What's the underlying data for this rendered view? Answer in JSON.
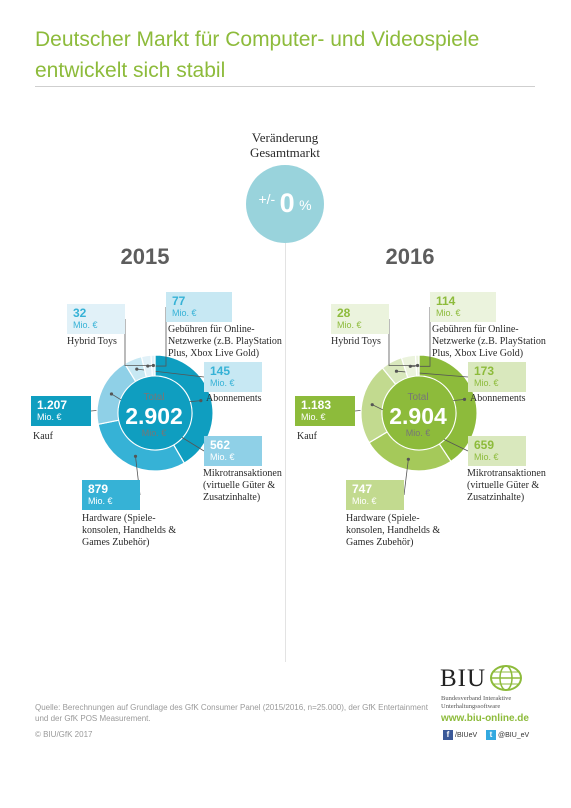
{
  "title": "Deutscher Markt für Computer- und Videospiele entwickelt sich stabil",
  "change": {
    "label_line1": "Veränderung",
    "label_line2": "Gesamtmarkt",
    "sign": "+/-",
    "value": "0",
    "unit": "%"
  },
  "colors": {
    "title": "#8dbb3b",
    "change_circle": "#99d3dc",
    "blue_dark": "#0f9ec0",
    "blue_mid": "#36b2d6",
    "blue_light": "#8fd0e7",
    "blue_pale": "#c7e8f3",
    "blue_faint": "#e1f1f8",
    "green_dark": "#8dbb3b",
    "green_mid": "#a5c95a",
    "green_light": "#c2da8f",
    "green_pale": "#d9e8bd",
    "green_faint": "#ebf3dd"
  },
  "chart_data": [
    {
      "type": "pie",
      "title": "2015",
      "unit": "Mio. €",
      "total_label": "Total",
      "total": "2.902",
      "total_unit": "Mio. €",
      "categories": [
        "Kauf",
        "Hardware (Spielekonsolen, Handhelds & Games Zubehör)",
        "Mikrotransaktionen (virtuelle Güter & Zusatzinhalte)",
        "Abonnements",
        "Gebühren für Online-Netzwerke (z.B. PlayStation Plus, Xbox Live Gold)",
        "Hybrid Toys"
      ],
      "values": [
        1207,
        879,
        562,
        145,
        77,
        32
      ],
      "value_labels": [
        "1.207",
        "879",
        "562",
        "145",
        "77",
        "32"
      ]
    },
    {
      "type": "pie",
      "title": "2016",
      "unit": "Mio. €",
      "total_label": "Total",
      "total": "2.904",
      "total_unit": "Mio. €",
      "categories": [
        "Kauf",
        "Hardware (Spielekonsolen, Handhelds & Games Zubehör)",
        "Mikrotransaktionen (virtuelle Güter & Zusatzinhalte)",
        "Abonnements",
        "Gebühren für Online-Netzwerke (z.B. PlayStation Plus, Xbox Live Gold)",
        "Hybrid Toys"
      ],
      "values": [
        1183,
        747,
        659,
        173,
        114,
        28
      ],
      "value_labels": [
        "1.183",
        "747",
        "659",
        "173",
        "114",
        "28"
      ]
    }
  ],
  "segment_labels": {
    "kauf": "Kauf",
    "hybrid_toys": "Hybrid Toys",
    "gebuehren": [
      "Gebühren für Online-",
      "Netzwerke (z.B. PlayStation",
      "Plus, Xbox Live Gold)"
    ],
    "abonnements": "Abonnements",
    "mikro": [
      "Mikrotransaktionen",
      "(virtuelle Güter &",
      "Zusatzinhalte)"
    ],
    "hardware": [
      "Hardware (Spiele-",
      "konsolen, Handhelds &",
      "Games Zubehör)"
    ]
  },
  "footer": {
    "source_line1": "Quelle: Berechnungen auf Grundlage des GfK Consumer Panel (2015/2016, n=25.000), der GfK Entertainment",
    "source_line2": "und der GfK POS Measurement.",
    "copyright": "© BIU/GfK 2017",
    "logo": "BIU",
    "org_line1": "Bundesverband Interaktive",
    "org_line2": "Unterhaltungssoftware",
    "url": "www.biu-online.de",
    "facebook": "/BIUeV",
    "twitter": "@BIU_eV",
    "facebook_icon": "facebook-icon",
    "twitter_icon": "twitter-icon"
  }
}
